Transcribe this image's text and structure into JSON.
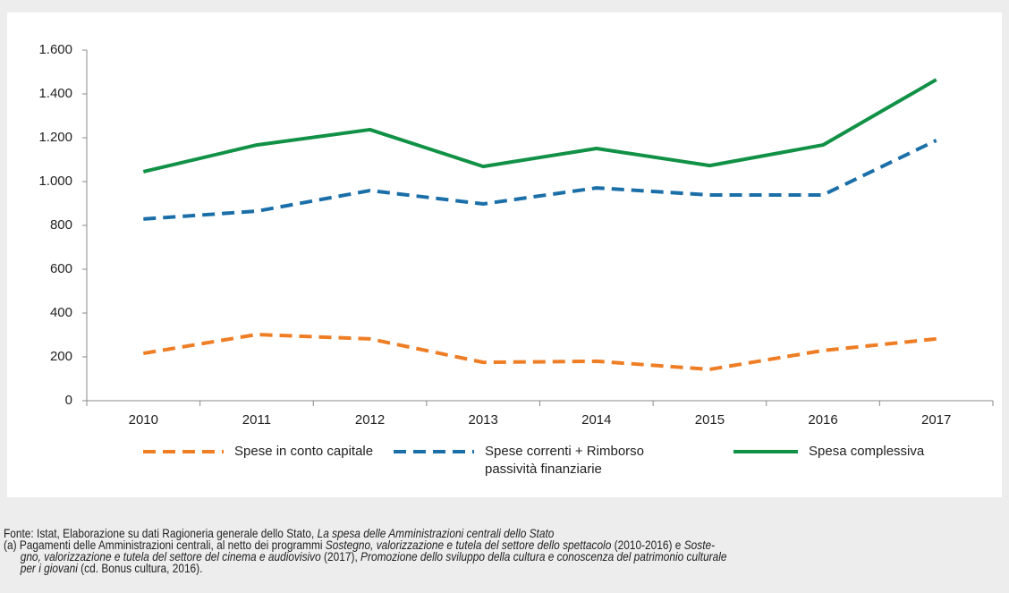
{
  "chart_data": {
    "type": "line",
    "categories": [
      "2010",
      "2011",
      "2012",
      "2013",
      "2014",
      "2015",
      "2016",
      "2017"
    ],
    "series": [
      {
        "name": "Spese in conto capitale",
        "color": "#ee7d24",
        "dash": true,
        "values": [
          216,
          302,
          282,
          175,
          180,
          143,
          229,
          282
        ]
      },
      {
        "name": "Spese correnti + Rimborso passività finanziarie",
        "color": "#1b6fa8",
        "dash": true,
        "values": [
          829,
          865,
          959,
          898,
          971,
          939,
          939,
          1188
        ]
      },
      {
        "name": "Spesa complessiva",
        "color": "#119146",
        "dash": false,
        "values": [
          1045,
          1167,
          1237,
          1069,
          1151,
          1073,
          1167,
          1465
        ]
      }
    ],
    "ylim": [
      0,
      1600
    ],
    "yticks": [
      0,
      200,
      400,
      600,
      800,
      {
        "value": 1000,
        "label": "1.000"
      },
      {
        "value": 1200,
        "label": "1.200"
      },
      {
        "value": 1400,
        "label": "1.400"
      },
      {
        "value": 1600,
        "label": "1.600"
      }
    ],
    "grid": false
  },
  "notes": [
    [
      {
        "text": "Fonte: Istat, Elaborazione su dati Ragioneria generale dello Stato, ",
        "italic": false
      },
      {
        "text": "La spesa delle Amministrazioni centrali dello Stato",
        "italic": true
      }
    ],
    [
      {
        "text": "(a) Pagamenti delle Amministrazioni centrali, al netto dei programmi ",
        "italic": false
      },
      {
        "text": "Sostegno, valorizzazione e tutela del settore dello spettacolo",
        "italic": true
      },
      {
        "text": " (2010-2016) e ",
        "italic": false
      },
      {
        "text": "Soste-",
        "italic": true
      }
    ],
    [
      {
        "text": "gno, valorizzazione e tutela del settore del cinema e audiovisivo",
        "italic": true
      },
      {
        "text": " (2017), ",
        "italic": false
      },
      {
        "text": "Promozione dello sviluppo della cultura e conoscenza del patrimonio culturale",
        "italic": true
      }
    ],
    [
      {
        "text": "per i giovani",
        "italic": true
      },
      {
        "text": " (cd. Bonus cultura, 2016).",
        "italic": false
      }
    ]
  ]
}
